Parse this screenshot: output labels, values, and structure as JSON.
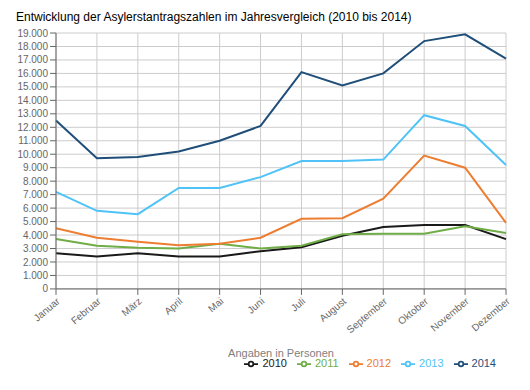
{
  "chart_data": {
    "type": "line",
    "title": "Entwicklung der Asylerstantragszahlen im Jahresvergleich (2010 bis 2014)",
    "xlabel": "Angaben in Personen",
    "categories": [
      "Januar",
      "Februar",
      "März",
      "April",
      "Mai",
      "Juni",
      "Juli",
      "August",
      "September",
      "Oktober",
      "November",
      "Dezember"
    ],
    "series": [
      {
        "name": "2010",
        "color": "#1a1a1a",
        "values": [
          2650,
          2400,
          2650,
          2400,
          2400,
          2800,
          3100,
          3950,
          4600,
          4750,
          4750,
          3700
        ]
      },
      {
        "name": "2011",
        "color": "#70ad47",
        "values": [
          3700,
          3200,
          3050,
          3000,
          3350,
          3000,
          3200,
          4050,
          4100,
          4100,
          4650,
          4150
        ]
      },
      {
        "name": "2012",
        "color": "#ed7d31",
        "values": [
          4500,
          3800,
          3500,
          3250,
          3350,
          3800,
          5200,
          5250,
          6700,
          9900,
          9000,
          4900
        ]
      },
      {
        "name": "2013",
        "color": "#4fc3f7",
        "values": [
          7200,
          5800,
          5550,
          7500,
          7500,
          8300,
          9500,
          9500,
          9600,
          12900,
          12100,
          9200
        ]
      },
      {
        "name": "2014",
        "color": "#1f4e79",
        "values": [
          12500,
          9700,
          9800,
          10200,
          11000,
          12100,
          16100,
          15100,
          16000,
          18400,
          18900,
          17100
        ]
      }
    ],
    "ylim": [
      0,
      19000
    ],
    "yticks": [
      0,
      {
        "value": 1000,
        "label": "1.000"
      },
      {
        "value": 2000,
        "label": "2.000"
      },
      {
        "value": 3000,
        "label": "3.000"
      },
      {
        "value": 4000,
        "label": "4.000"
      },
      {
        "value": 5000,
        "label": "5.000"
      },
      {
        "value": 6000,
        "label": "6.000"
      },
      {
        "value": 7000,
        "label": "7.000"
      },
      {
        "value": 8000,
        "label": "8.000"
      },
      {
        "value": 9000,
        "label": "9.000"
      },
      {
        "value": 10000,
        "label": "10.000"
      },
      {
        "value": 11000,
        "label": "11.000"
      },
      {
        "value": 12000,
        "label": "12.000"
      },
      {
        "value": 13000,
        "label": "13.000"
      },
      {
        "value": 14000,
        "label": "14.000"
      },
      {
        "value": 15000,
        "label": "15.000"
      },
      {
        "value": 16000,
        "label": "16.000"
      },
      {
        "value": 17000,
        "label": "17.000"
      },
      {
        "value": 18000,
        "label": "18.000"
      },
      {
        "value": 19000,
        "label": "19.000"
      }
    ],
    "grid": true,
    "legend": "bottom"
  }
}
